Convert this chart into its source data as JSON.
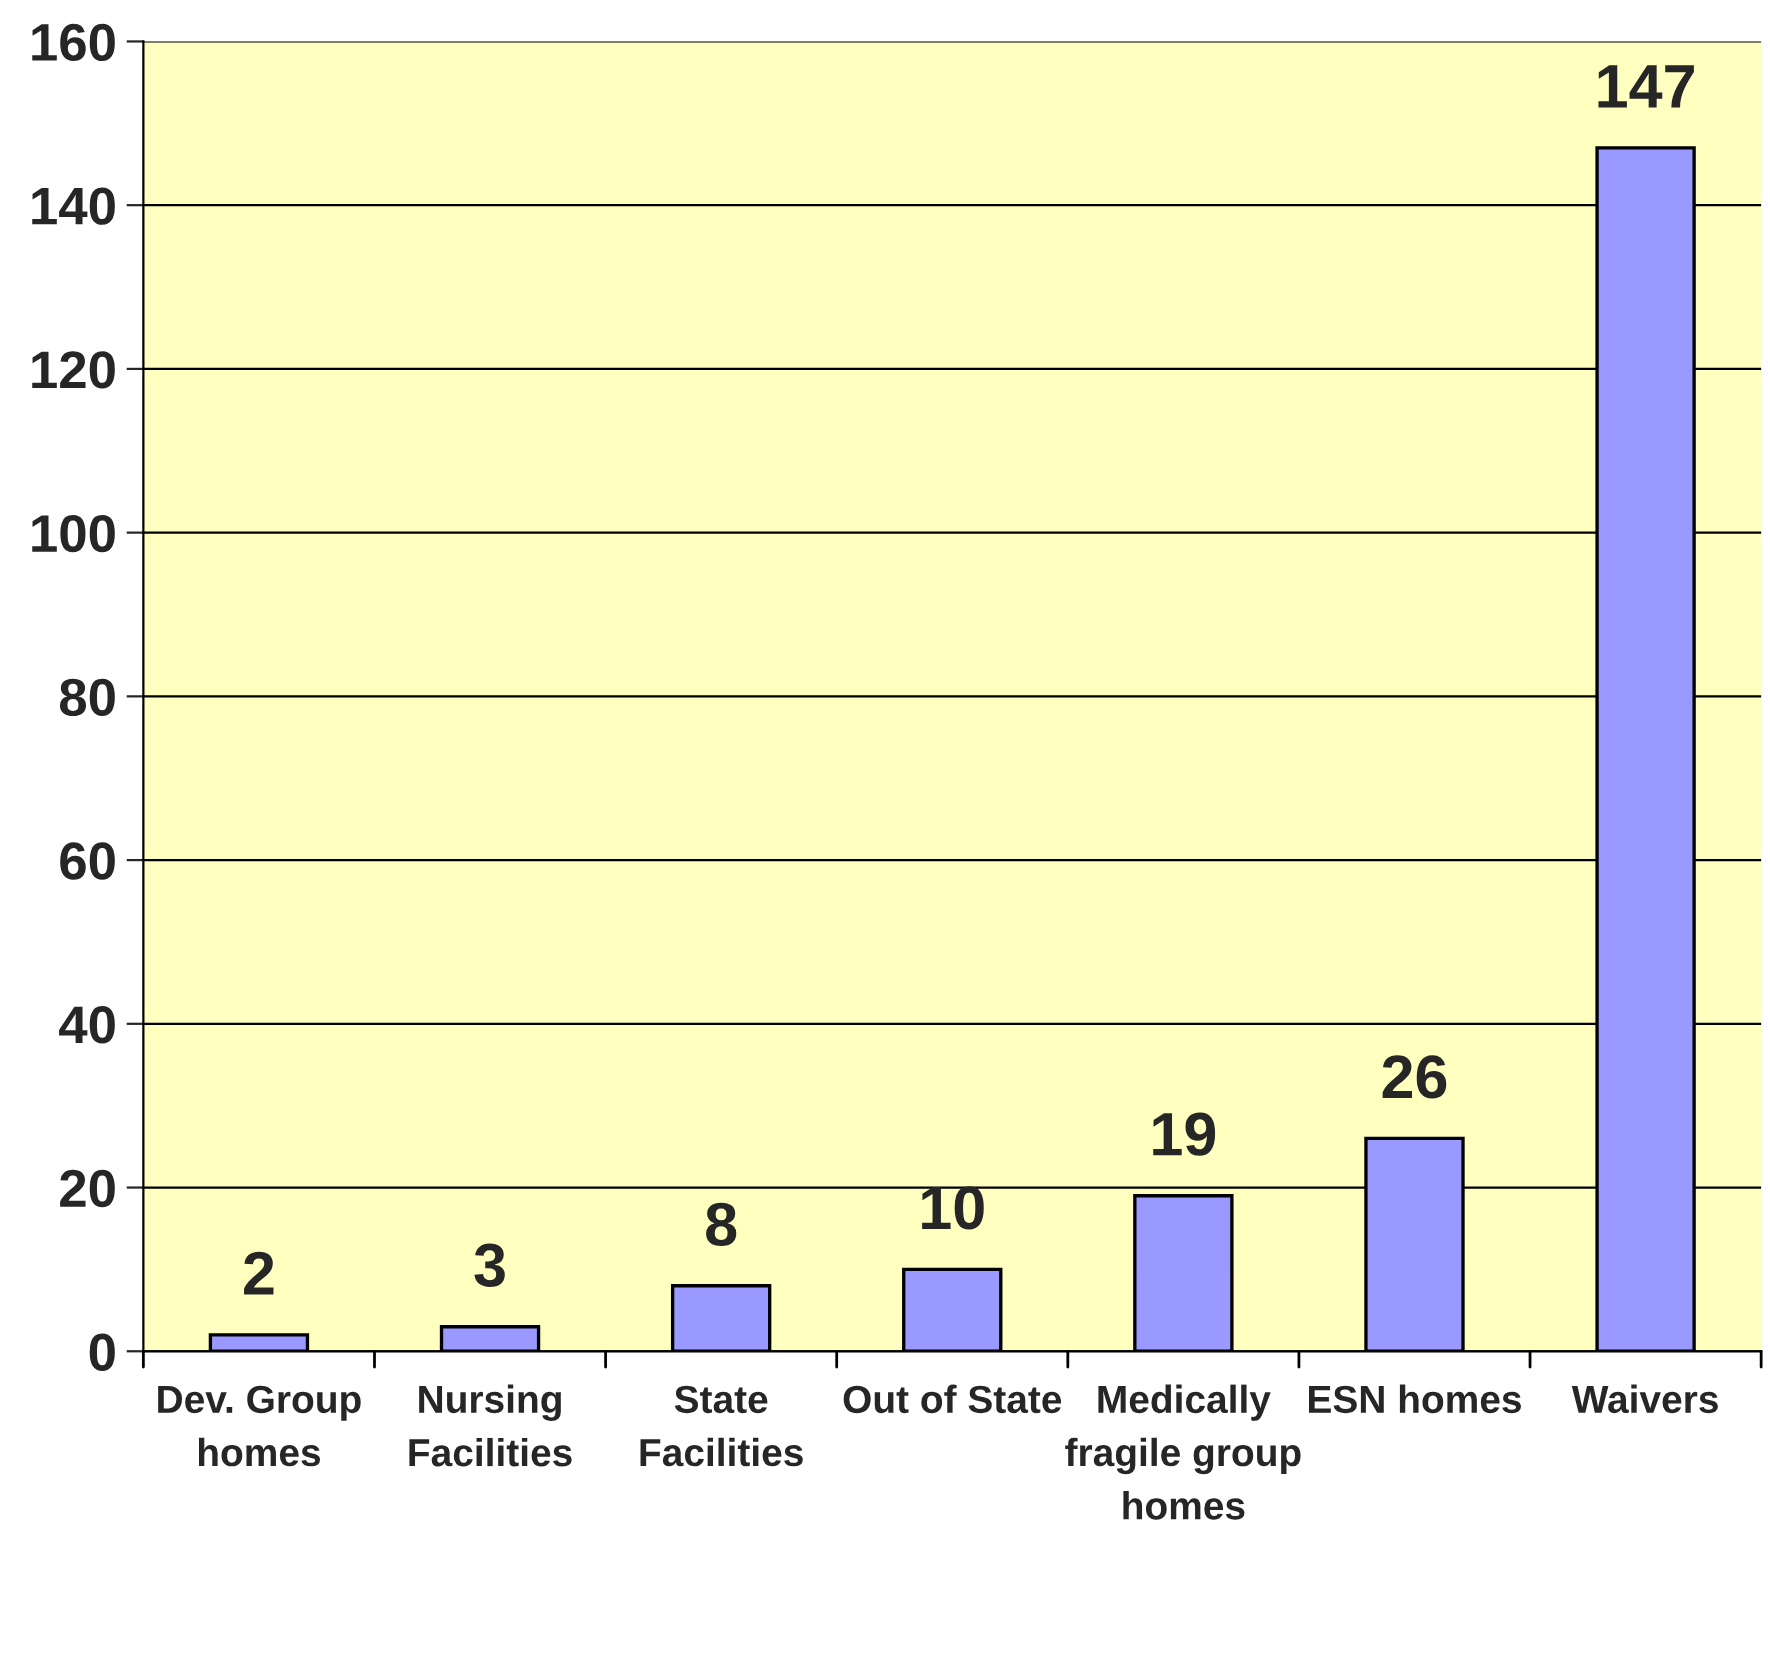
{
  "chart_data": {
    "type": "bar",
    "categories": [
      "Dev. Group\nhomes",
      "Nursing\nFacilities",
      "State\nFacilities",
      "Out of State",
      "Medically\nfragile group\nhomes",
      "ESN homes",
      "Waivers"
    ],
    "values": [
      2,
      3,
      8,
      10,
      19,
      26,
      147
    ],
    "color": "#9999ff",
    "ylim": [
      0,
      160
    ],
    "yticks": [
      0,
      20,
      40,
      60,
      80,
      100,
      120,
      140,
      160
    ],
    "grid": "y",
    "data_labels": true
  }
}
